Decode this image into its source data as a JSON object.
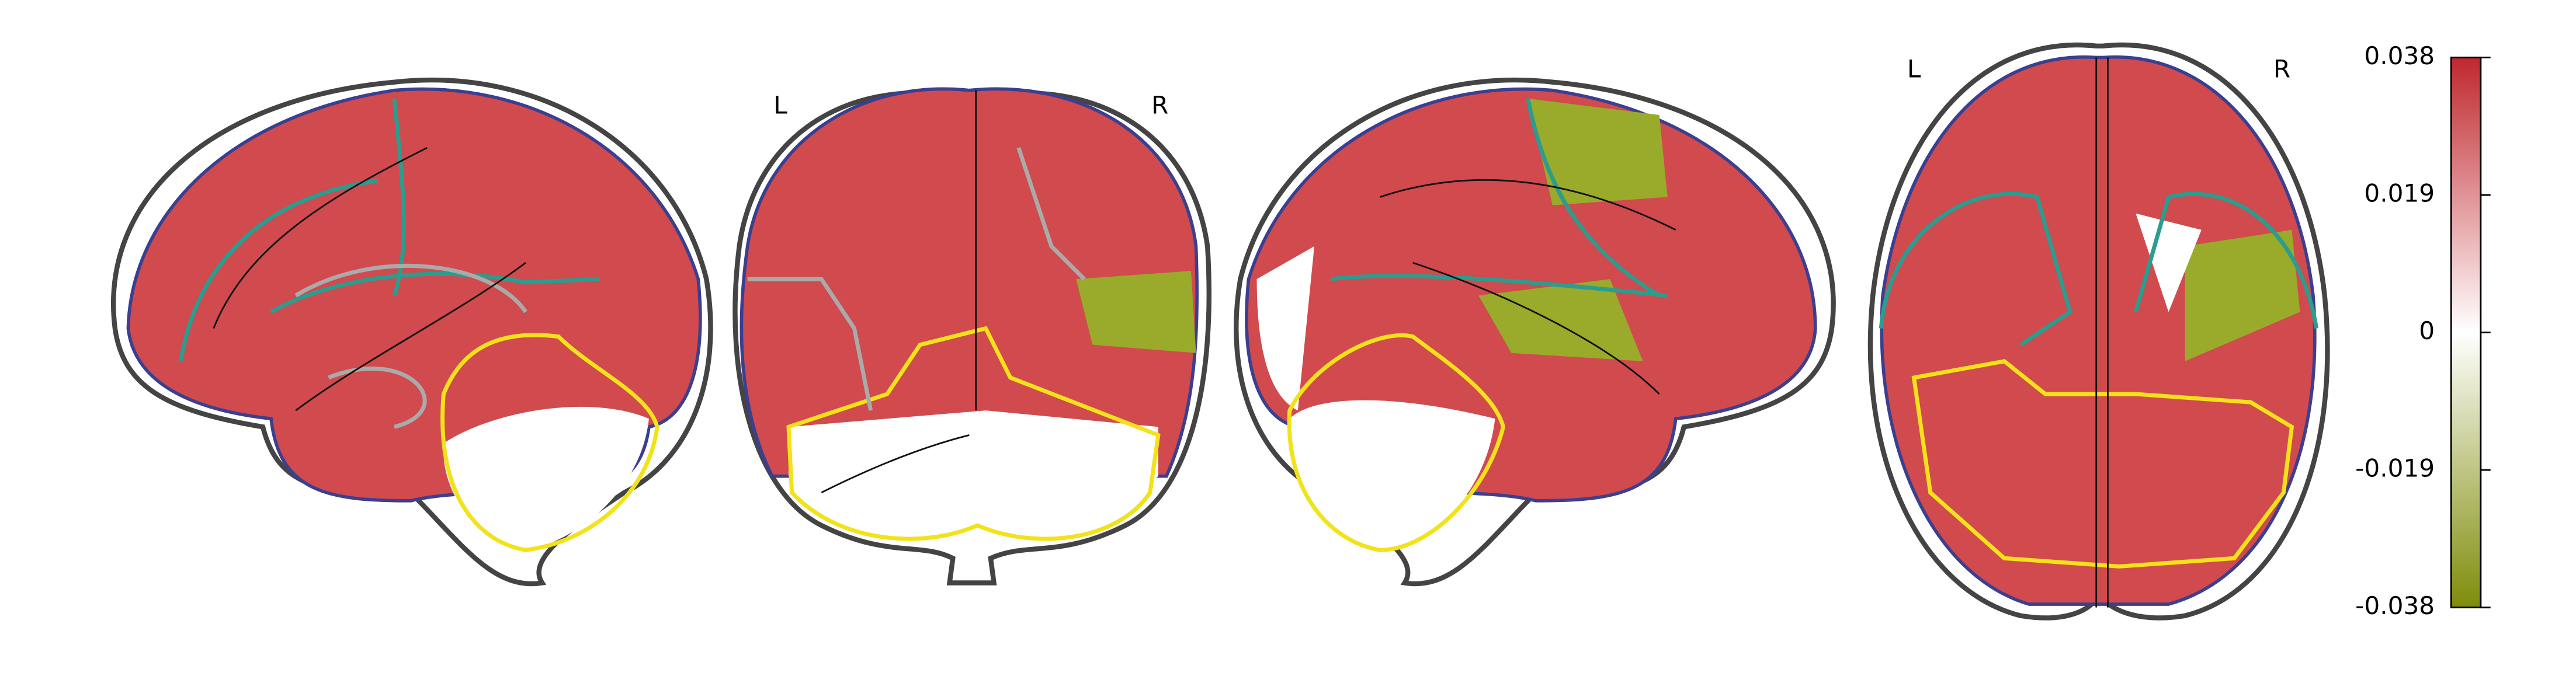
{
  "orientation_labels": {
    "coronal": [
      "L",
      "R"
    ],
    "axial": [
      "L",
      "R"
    ]
  },
  "colorbar": {
    "lim": [
      -0.038,
      0.038
    ],
    "ticks": [
      0.038,
      0.019,
      0,
      -0.019,
      -0.038
    ],
    "colors": [
      "#7f8c0a",
      "#ffffff",
      "#c0272d"
    ]
  }
}
